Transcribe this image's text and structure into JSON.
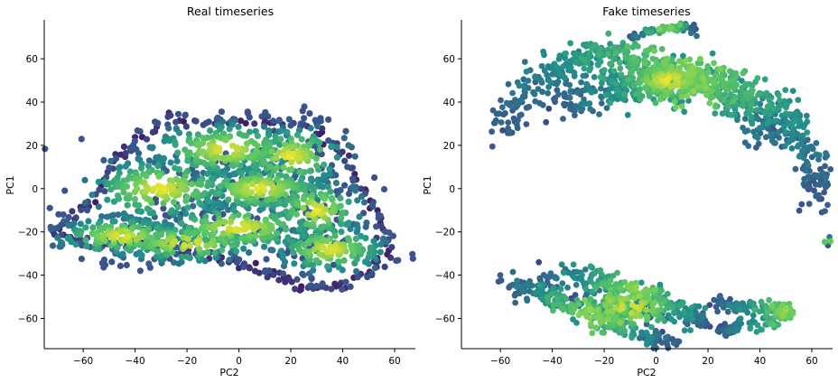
{
  "chart_data": [
    {
      "type": "scatter",
      "title": "Real timeseries",
      "xlabel": "PC2",
      "ylabel": "PC1",
      "xlim": [
        -75,
        68
      ],
      "ylim": [
        -74,
        78
      ],
      "xticks": [
        -60,
        -40,
        -20,
        0,
        20,
        40,
        60
      ],
      "yticks": [
        -60,
        -40,
        -20,
        0,
        20,
        40,
        60
      ],
      "xtick_labels": [
        "−60",
        "−40",
        "−20",
        "0",
        "20",
        "40",
        "60"
      ],
      "ytick_labels": [
        "−60",
        "−40",
        "−20",
        "0",
        "20",
        "40",
        "60"
      ],
      "grid": false,
      "colormap": [
        "#440154",
        "#3b528b",
        "#21918c",
        "#5ec962",
        "#fde725"
      ],
      "clusters": [
        {
          "cx": -5,
          "cy": 18,
          "sx": 16,
          "sy": 7,
          "n": 260
        },
        {
          "cx": 8,
          "cy": 0,
          "sx": 15,
          "sy": 6,
          "n": 220
        },
        {
          "cx": -30,
          "cy": 0,
          "sx": 16,
          "sy": 8,
          "n": 200
        },
        {
          "cx": -45,
          "cy": -22,
          "sx": 14,
          "sy": 5,
          "n": 170
        },
        {
          "cx": 0,
          "cy": -18,
          "sx": 18,
          "sy": 6,
          "n": 190
        },
        {
          "cx": 35,
          "cy": -28,
          "sx": 12,
          "sy": 6,
          "n": 170
        },
        {
          "cx": 30,
          "cy": -10,
          "sx": 10,
          "sy": 8,
          "n": 120
        },
        {
          "cx": -20,
          "cy": -25,
          "sx": 18,
          "sy": 5,
          "n": 170
        },
        {
          "cx": 20,
          "cy": 15,
          "sx": 12,
          "sy": 8,
          "n": 120
        }
      ],
      "outline": [
        [
          -73,
          -20
        ],
        [
          -65,
          -15
        ],
        [
          -55,
          -5
        ],
        [
          -48,
          12
        ],
        [
          -40,
          22
        ],
        [
          -28,
          32
        ],
        [
          -15,
          31
        ],
        [
          0,
          33
        ],
        [
          15,
          30
        ],
        [
          30,
          28
        ],
        [
          40,
          15
        ],
        [
          48,
          0
        ],
        [
          55,
          -15
        ],
        [
          58,
          -28
        ],
        [
          50,
          -40
        ],
        [
          40,
          -44
        ],
        [
          30,
          -46
        ],
        [
          20,
          -43
        ],
        [
          10,
          -38
        ],
        [
          0,
          -34
        ],
        [
          -15,
          -30
        ],
        [
          -30,
          -26
        ],
        [
          -45,
          -27
        ],
        [
          -60,
          -25
        ]
      ]
    },
    {
      "type": "scatter",
      "title": "Fake timeseries",
      "xlabel": "PC2",
      "ylabel": "PC1",
      "xlim": [
        -75,
        68
      ],
      "ylim": [
        -74,
        78
      ],
      "xticks": [
        -60,
        -40,
        -20,
        0,
        20,
        40,
        60
      ],
      "yticks": [
        -60,
        -40,
        -20,
        0,
        20,
        40,
        60
      ],
      "xtick_labels": [
        "−60",
        "−40",
        "−20",
        "0",
        "20",
        "40",
        "60"
      ],
      "ytick_labels": [
        "−60",
        "−40",
        "−20",
        "0",
        "20",
        "40",
        "60"
      ],
      "grid": false,
      "colormap": [
        "#440154",
        "#3b528b",
        "#21918c",
        "#5ec962",
        "#fde725"
      ],
      "paths": [
        {
          "points": [
            [
              -60,
              25
            ],
            [
              -55,
              38
            ],
            [
              -45,
              50
            ],
            [
              -35,
              58
            ],
            [
              -25,
              62
            ],
            [
              -15,
              62
            ],
            [
              -5,
              58
            ],
            [
              5,
              55
            ],
            [
              15,
              52
            ],
            [
              25,
              50
            ],
            [
              35,
              45
            ],
            [
              45,
              38
            ],
            [
              52,
              30
            ],
            [
              58,
              18
            ],
            [
              62,
              5
            ],
            [
              63,
              -8
            ]
          ],
          "width": 6,
          "density": 600
        },
        {
          "points": [
            [
              -40,
              42
            ],
            [
              -25,
              45
            ],
            [
              -10,
              48
            ],
            [
              5,
              50
            ],
            [
              20,
              48
            ],
            [
              30,
              40
            ],
            [
              40,
              32
            ],
            [
              48,
              22
            ]
          ],
          "width": 8,
          "density": 400
        },
        {
          "points": [
            [
              -10,
              70
            ],
            [
              5,
              75
            ],
            [
              15,
              73
            ]
          ],
          "width": 2,
          "density": 60
        },
        {
          "points": [
            [
              -58,
              -43
            ],
            [
              -45,
              -48
            ],
            [
              -32,
              -55
            ],
            [
              -18,
              -62
            ],
            [
              -5,
              -68
            ],
            [
              5,
              -72
            ]
          ],
          "width": 4,
          "density": 220
        },
        {
          "points": [
            [
              -45,
              -42
            ],
            [
              -30,
              -40
            ],
            [
              -15,
              -45
            ],
            [
              0,
              -50
            ],
            [
              12,
              -58
            ],
            [
              18,
              -62
            ]
          ],
          "width": 4,
          "density": 200
        },
        {
          "points": [
            [
              -30,
              -50
            ],
            [
              -15,
              -55
            ],
            [
              0,
              -57
            ]
          ],
          "width": 5,
          "density": 120
        },
        {
          "points": [
            [
              22,
              -52
            ],
            [
              30,
              -55
            ],
            [
              40,
              -56
            ],
            [
              48,
              -54
            ],
            [
              50,
              -58
            ],
            [
              42,
              -63
            ],
            [
              30,
              -64
            ],
            [
              25,
              -67
            ]
          ],
          "width": 3,
          "density": 160
        },
        {
          "points": [
            [
              66,
              -25
            ],
            [
              67,
              -23
            ]
          ],
          "width": 1,
          "density": 6
        }
      ],
      "hotspots": [
        {
          "cx": 5,
          "cy": 50,
          "sx": 10,
          "sy": 5,
          "n": 160
        },
        {
          "cx": -10,
          "cy": -55,
          "sx": 10,
          "sy": 6,
          "n": 90
        }
      ]
    }
  ]
}
